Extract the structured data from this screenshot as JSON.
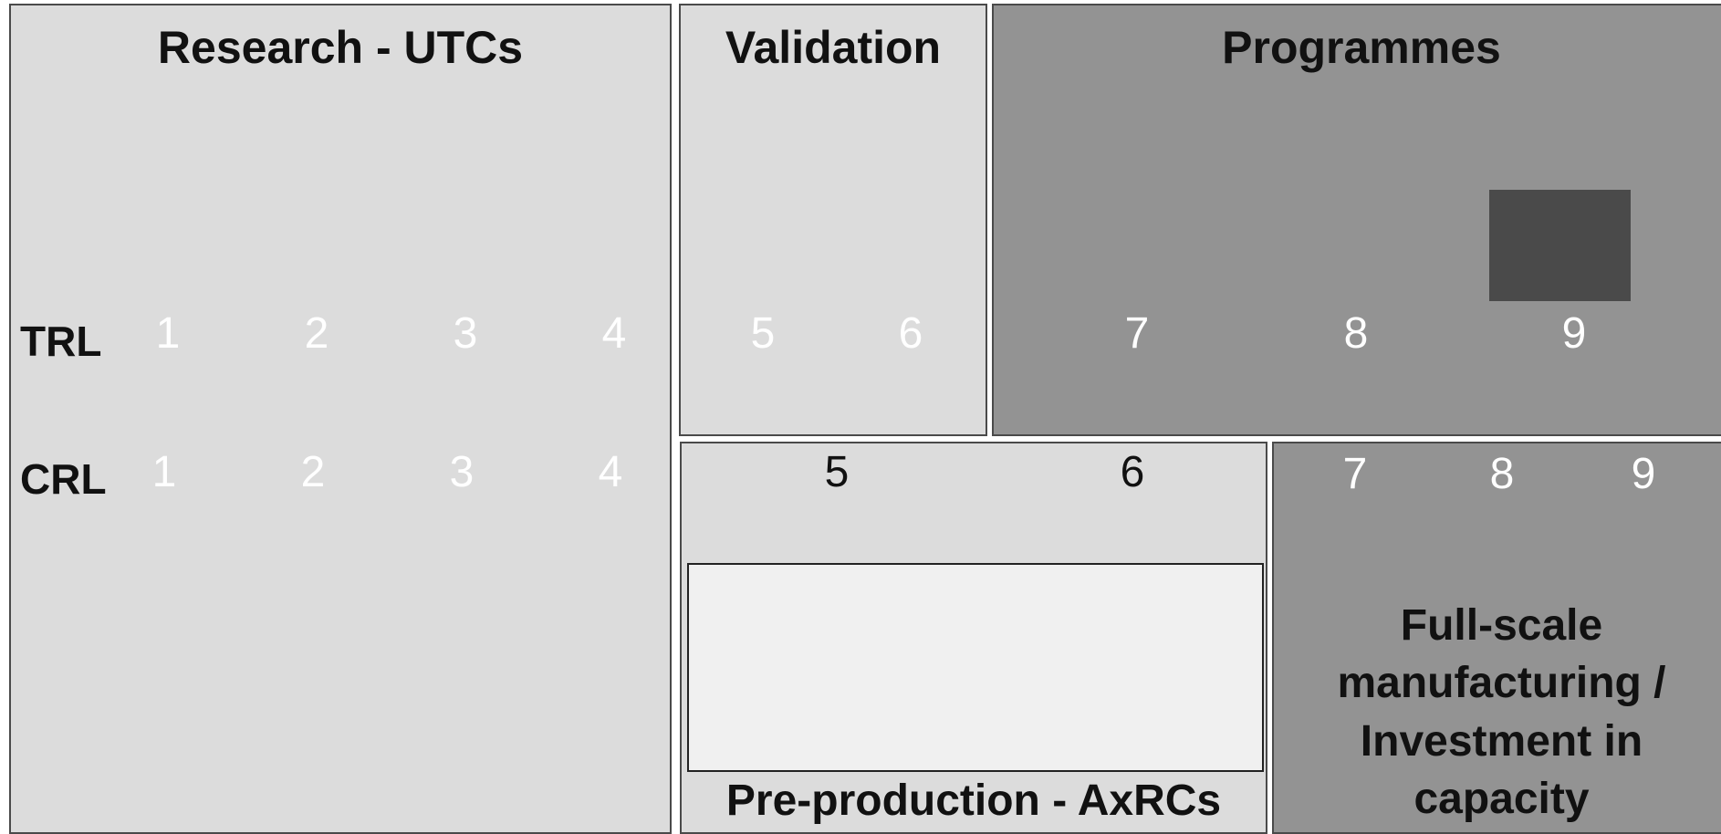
{
  "research": {
    "title": "Research - UTCs"
  },
  "validation": {
    "title": "Validation"
  },
  "programmes": {
    "title": "Programmes"
  },
  "preproduction": {
    "title": "Pre-production - AxRCs"
  },
  "fullscale": {
    "title_lines": [
      "Full-scale",
      "manufacturing /",
      "Investment in",
      "capacity"
    ]
  },
  "labels": {
    "trl": "TRL",
    "crl": "CRL"
  },
  "trl_levels": [
    "1",
    "2",
    "3",
    "4",
    "5",
    "6",
    "7",
    "8",
    "9"
  ],
  "crl_levels": [
    "1",
    "2",
    "3",
    "4",
    "5",
    "6",
    "7",
    "8",
    "9"
  ],
  "colors": {
    "light_box": "#dcdcdc",
    "mid_box": "#939393",
    "dark_square": "#4a4a4a",
    "inner_box": "#f0f0f0"
  }
}
